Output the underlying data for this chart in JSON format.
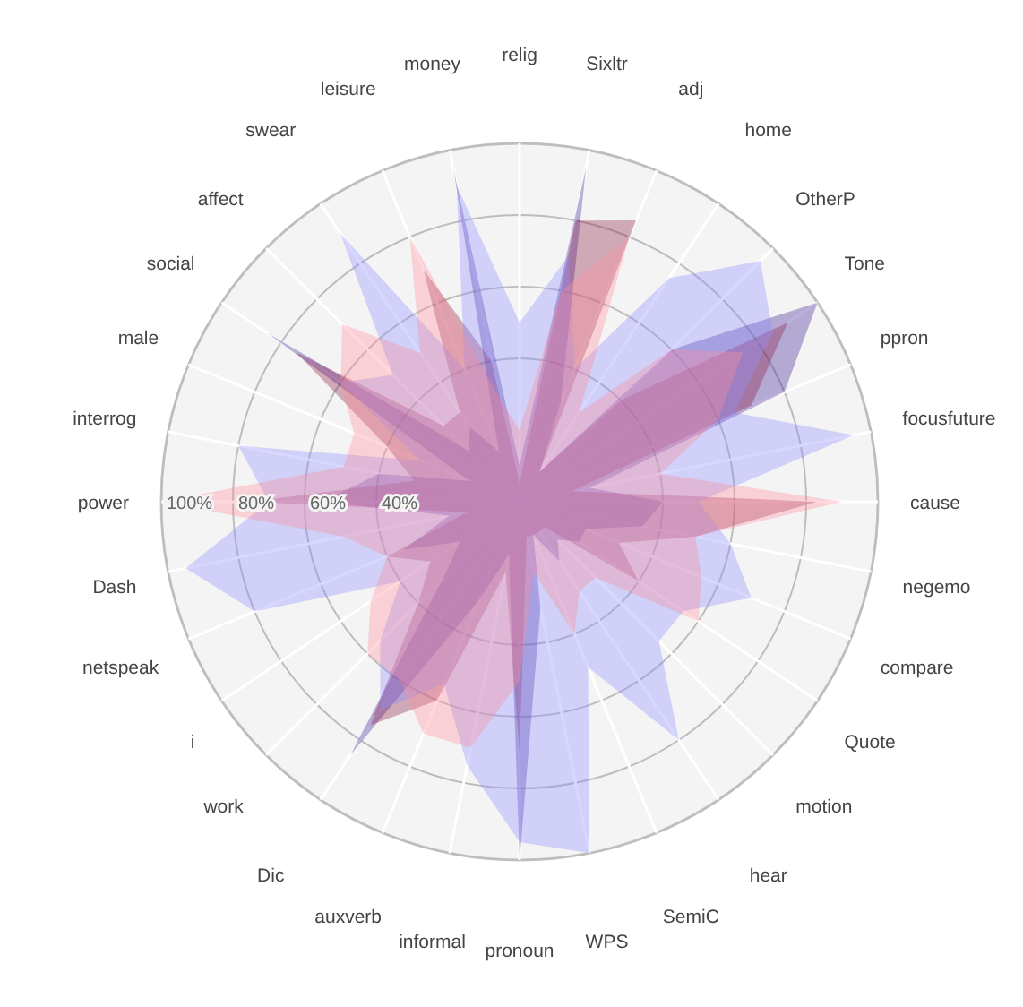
{
  "chart_data": {
    "type": "radar",
    "categories": [
      "relig",
      "Sixltr",
      "adj",
      "home",
      "OtherP",
      "Tone",
      "ppron",
      "focusfuture",
      "cause",
      "negemo",
      "compare",
      "Quote",
      "motion",
      "hear",
      "SemiC",
      "WPS",
      "pronoun",
      "informal",
      "auxverb",
      "Dic",
      "work",
      "i",
      "netspeak",
      "Dash",
      "power",
      "interrog",
      "male",
      "social",
      "affect",
      "swear",
      "leisure",
      "money"
    ],
    "series": [
      {
        "color": "#3b1c96",
        "values": [
          10,
          95,
          30,
          10,
          60,
          100,
          80,
          20,
          40,
          35,
          20,
          20,
          15,
          20,
          10,
          30,
          100,
          15,
          30,
          85,
          30,
          20,
          35,
          20,
          55,
          40,
          15,
          85,
          20,
          25,
          15,
          95
        ]
      },
      {
        "color": "#8c1c44",
        "values": [
          5,
          80,
          85,
          10,
          40,
          90,
          70,
          15,
          83,
          50,
          30,
          40,
          10,
          10,
          10,
          10,
          70,
          20,
          60,
          75,
          40,
          30,
          40,
          15,
          75,
          30,
          40,
          75,
          30,
          30,
          70,
          40
        ]
      },
      {
        "color": "#8c8cff",
        "values": [
          50,
          70,
          40,
          75,
          95,
          85,
          65,
          95,
          50,
          60,
          70,
          55,
          55,
          80,
          50,
          100,
          95,
          75,
          55,
          70,
          55,
          40,
          80,
          95,
          70,
          80,
          30,
          60,
          50,
          90,
          40,
          90
        ]
      },
      {
        "color": "#ff8c9c",
        "values": [
          20,
          60,
          80,
          30,
          60,
          75,
          60,
          40,
          90,
          50,
          55,
          60,
          30,
          30,
          40,
          20,
          50,
          70,
          70,
          60,
          60,
          50,
          40,
          50,
          100,
          50,
          50,
          60,
          70,
          50,
          80,
          30
        ]
      }
    ],
    "ylim": [
      0,
      100
    ],
    "yticks": [
      {
        "value": 40,
        "label": "40%"
      },
      {
        "value": 60,
        "label": "60%"
      },
      {
        "value": 80,
        "label": "80%"
      },
      {
        "value": 100,
        "label": "100%"
      }
    ],
    "grid": true
  }
}
